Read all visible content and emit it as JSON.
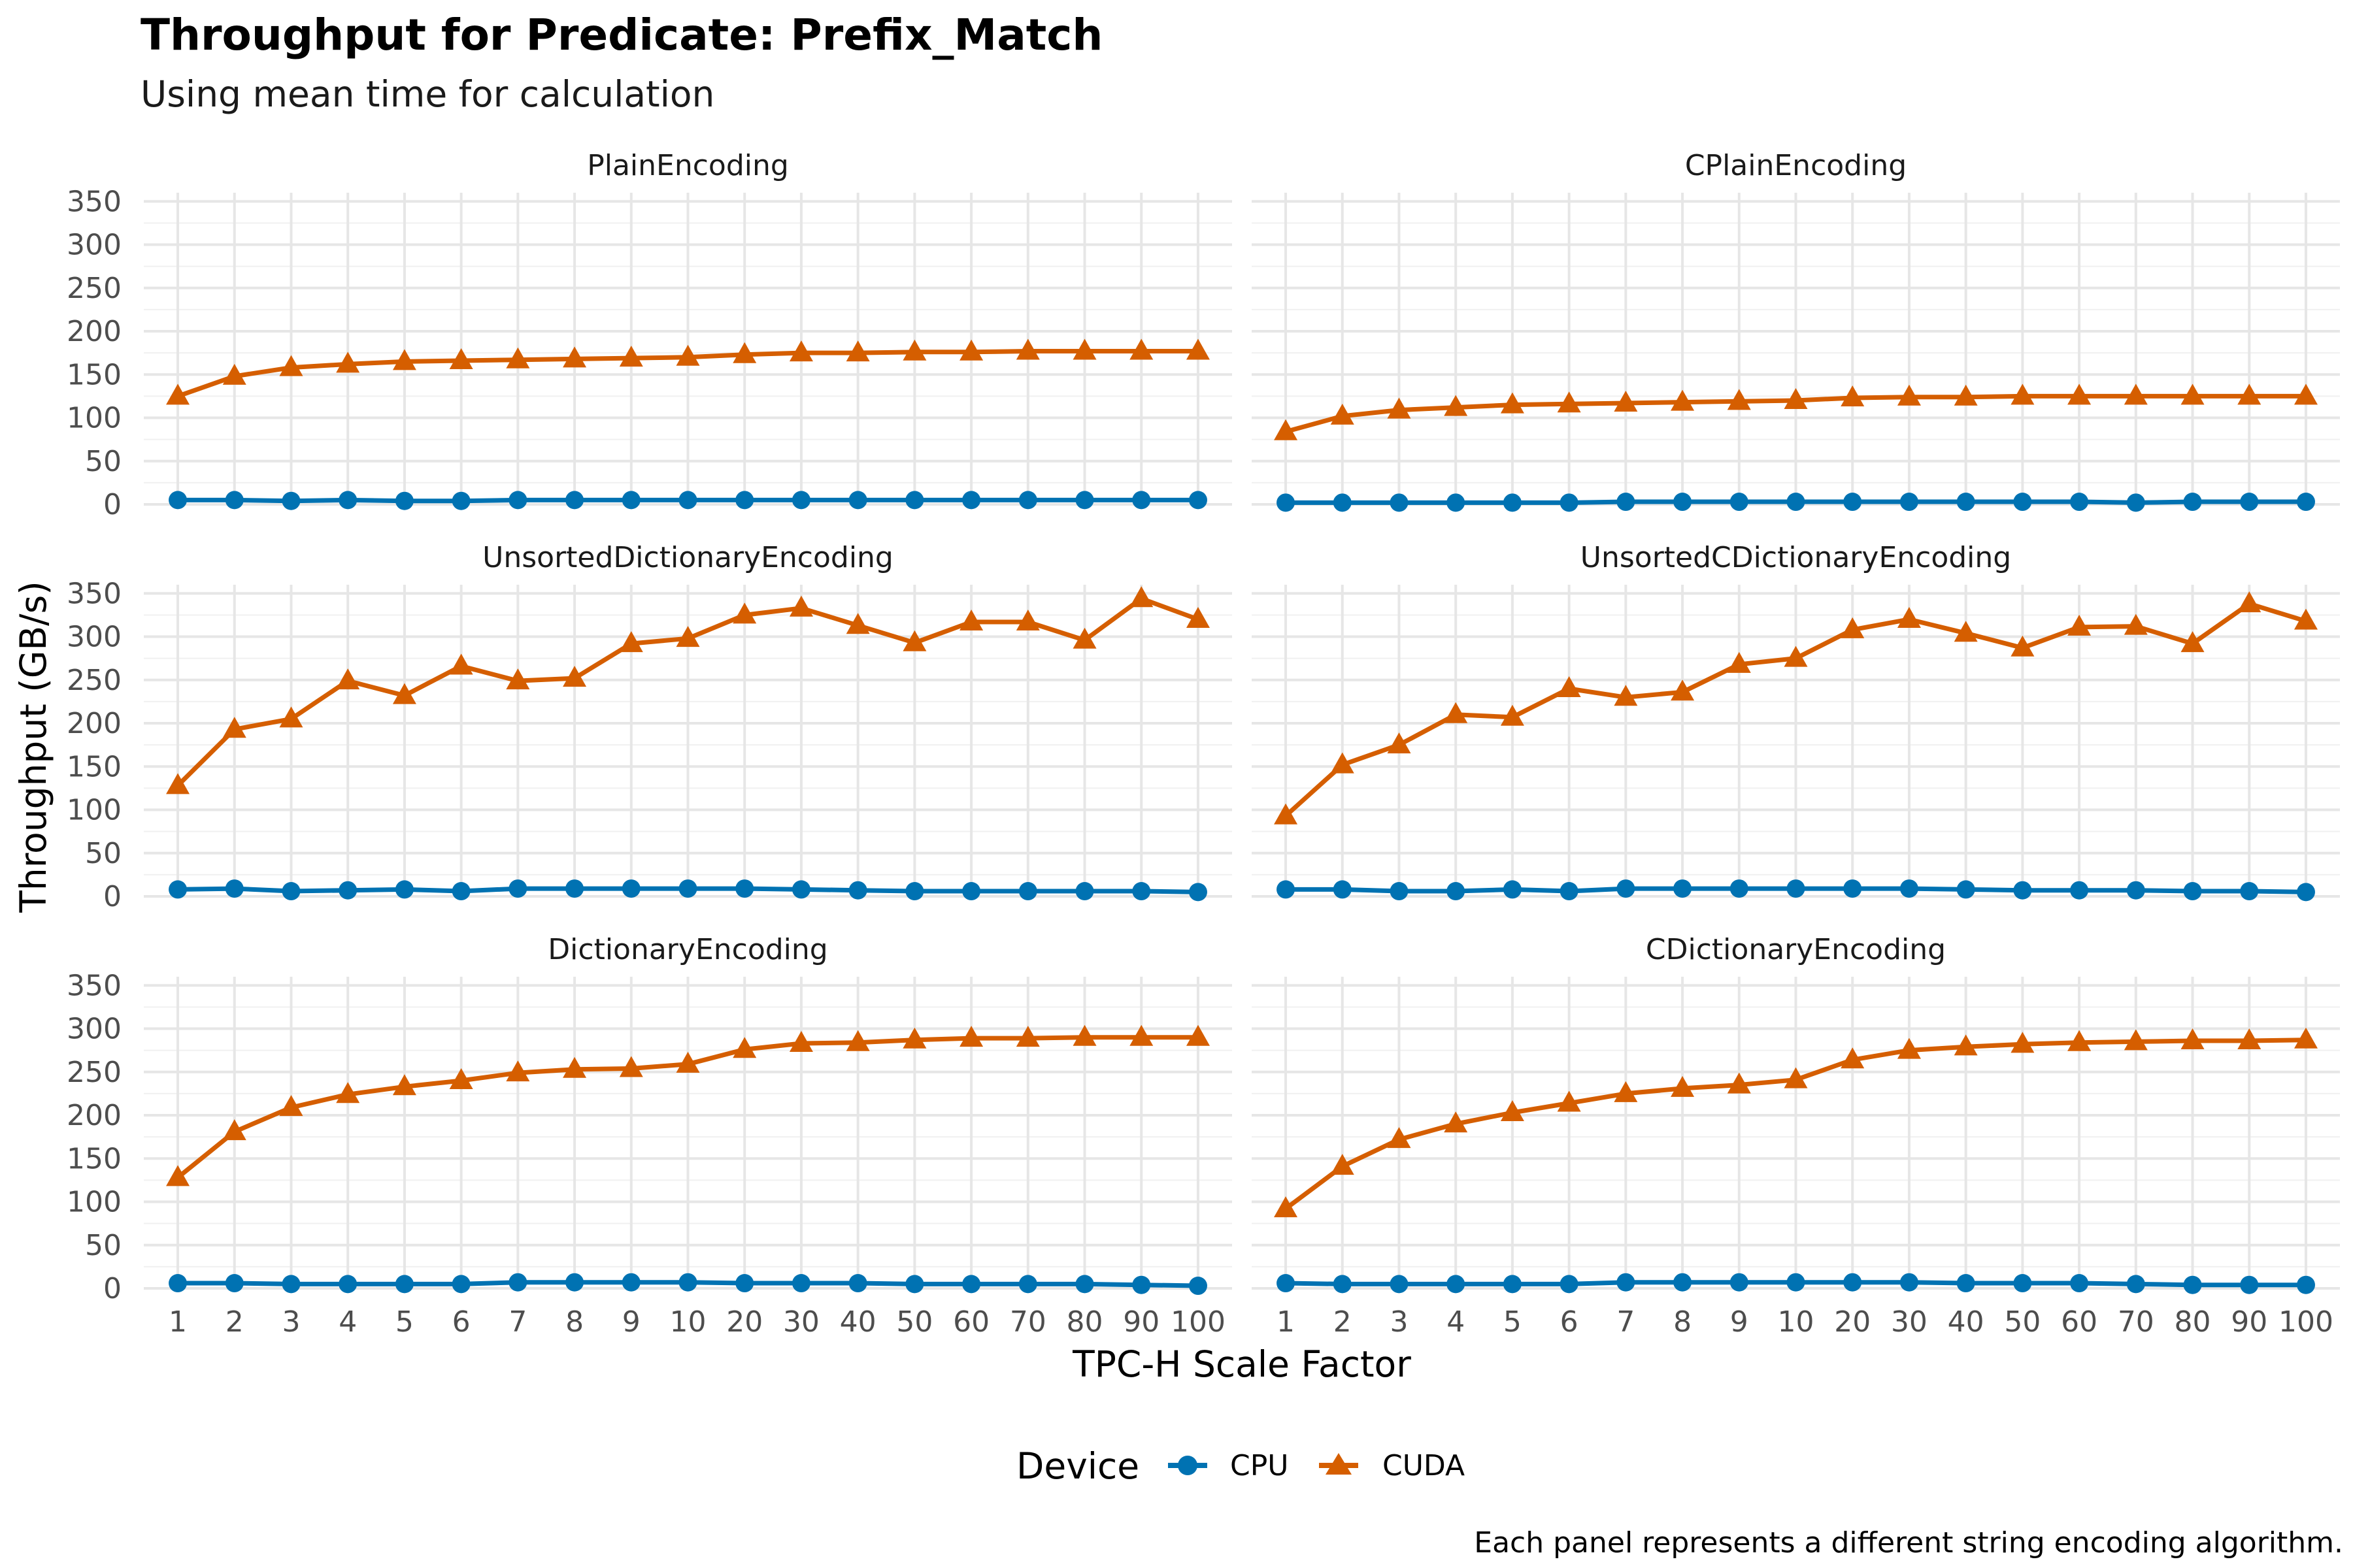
{
  "chart_data": {
    "type": "line",
    "title": "Throughput for Predicate: Prefix_Match",
    "subtitle": "Using mean time for calculation",
    "xlabel": "TPC-H Scale Factor",
    "ylabel": "Throughput (GB/s)",
    "caption": "Each panel represents a different string encoding algorithm.",
    "legend": {
      "title": "Device",
      "position": "bottom"
    },
    "x_categories": [
      "1",
      "2",
      "3",
      "4",
      "5",
      "6",
      "7",
      "8",
      "9",
      "10",
      "20",
      "30",
      "40",
      "50",
      "60",
      "70",
      "80",
      "90",
      "100"
    ],
    "y_ticks": [
      0,
      50,
      100,
      150,
      200,
      250,
      300,
      350
    ],
    "ylim": [
      0,
      360
    ],
    "grid": true,
    "colors": {
      "CPU": "#0072B2",
      "CUDA": "#D55E00"
    },
    "markers": {
      "CPU": "circle",
      "CUDA": "triangle"
    },
    "panels": [
      {
        "name": "PlainEncoding",
        "series": [
          {
            "name": "CPU",
            "values": [
              5,
              5,
              4,
              5,
              4,
              4,
              5,
              5,
              5,
              5,
              5,
              5,
              5,
              5,
              5,
              5,
              5,
              5,
              5
            ]
          },
          {
            "name": "CUDA",
            "values": [
              125,
              148,
              158,
              162,
              165,
              166,
              167,
              168,
              169,
              170,
              173,
              175,
              175,
              176,
              176,
              177,
              177,
              177,
              177
            ]
          }
        ]
      },
      {
        "name": "CPlainEncoding",
        "series": [
          {
            "name": "CPU",
            "values": [
              2,
              2,
              2,
              2,
              2,
              2,
              3,
              3,
              3,
              3,
              3,
              3,
              3,
              3,
              3,
              2,
              3,
              3,
              3
            ]
          },
          {
            "name": "CUDA",
            "values": [
              84,
              102,
              109,
              112,
              115,
              116,
              117,
              118,
              119,
              120,
              123,
              124,
              124,
              125,
              125,
              125,
              125,
              125,
              125
            ]
          }
        ]
      },
      {
        "name": "UnsortedDictionaryEncoding",
        "series": [
          {
            "name": "CPU",
            "values": [
              8,
              9,
              6,
              7,
              8,
              6,
              9,
              9,
              9,
              9,
              9,
              8,
              7,
              6,
              6,
              6,
              6,
              6,
              5
            ]
          },
          {
            "name": "CUDA",
            "values": [
              128,
              193,
              205,
              249,
              232,
              266,
              249,
              252,
              292,
              298,
              325,
              333,
              313,
              293,
              317,
              317,
              296,
              344,
              320
            ]
          }
        ]
      },
      {
        "name": "UnsortedCDictionaryEncoding",
        "series": [
          {
            "name": "CPU",
            "values": [
              8,
              8,
              6,
              6,
              8,
              6,
              9,
              9,
              9,
              9,
              9,
              9,
              8,
              7,
              7,
              7,
              6,
              6,
              5
            ]
          },
          {
            "name": "CUDA",
            "values": [
              93,
              152,
              175,
              210,
              207,
              240,
              230,
              236,
              268,
              275,
              308,
              320,
              304,
              287,
              311,
              312,
              292,
              338,
              318
            ]
          }
        ]
      },
      {
        "name": "DictionaryEncoding",
        "series": [
          {
            "name": "CPU",
            "values": [
              6,
              6,
              5,
              5,
              5,
              5,
              7,
              7,
              7,
              7,
              6,
              6,
              6,
              5,
              5,
              5,
              5,
              4,
              3
            ]
          },
          {
            "name": "CUDA",
            "values": [
              128,
              181,
              209,
              224,
              233,
              240,
              249,
              253,
              254,
              259,
              276,
              283,
              284,
              287,
              289,
              289,
              290,
              290,
              290
            ]
          }
        ]
      },
      {
        "name": "CDictionaryEncoding",
        "series": [
          {
            "name": "CPU",
            "values": [
              6,
              5,
              5,
              5,
              5,
              5,
              7,
              7,
              7,
              7,
              7,
              7,
              6,
              6,
              6,
              5,
              4,
              4,
              4
            ]
          },
          {
            "name": "CUDA",
            "values": [
              92,
              141,
              172,
              190,
              203,
              214,
              225,
              231,
              235,
              241,
              264,
              275,
              279,
              282,
              284,
              285,
              286,
              286,
              287
            ]
          }
        ]
      }
    ]
  }
}
